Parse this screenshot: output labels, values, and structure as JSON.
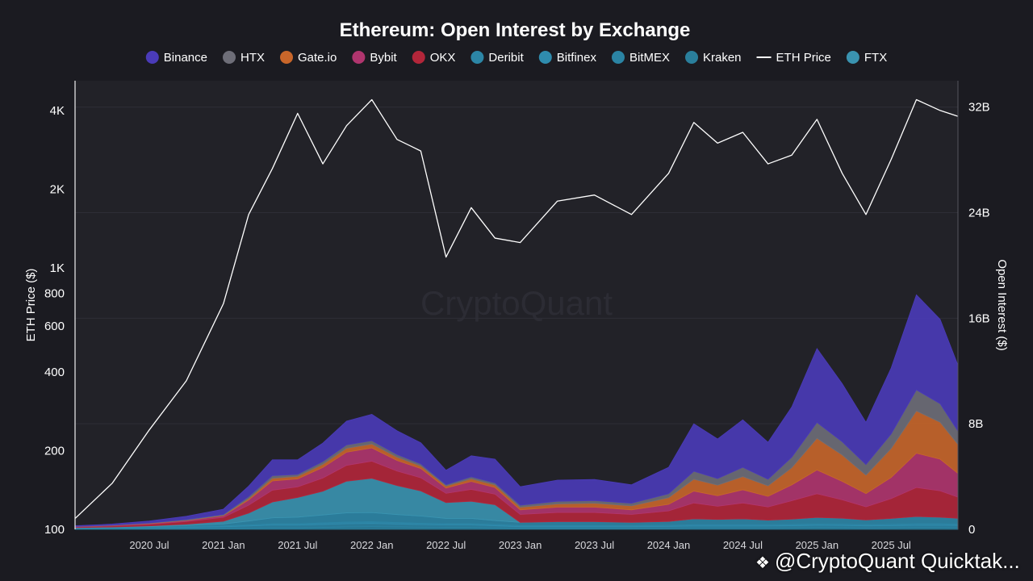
{
  "footer": {
    "icon": "binance-logo-icon",
    "text": "@CryptoQuant Quicktak..."
  },
  "chart_data": {
    "type": "area",
    "title": "Ethereum: Open Interest by Exchange",
    "watermark": "CryptoQuant",
    "ylabel_left": "ETH Price ($)",
    "ylabel_right": "Open Interest ($)",
    "y_left_scale": "log",
    "y_left_range": [
      100,
      5200
    ],
    "y_left_ticks": [
      {
        "value": 100,
        "label": "100"
      },
      {
        "value": 200,
        "label": "200"
      },
      {
        "value": 400,
        "label": "400"
      },
      {
        "value": 600,
        "label": "600"
      },
      {
        "value": 800,
        "label": "800"
      },
      {
        "value": 1000,
        "label": "1K"
      },
      {
        "value": 2000,
        "label": "2K"
      },
      {
        "value": 4000,
        "label": "4K"
      }
    ],
    "y_right_range": [
      0,
      34
    ],
    "y_right_ticks": [
      {
        "value": 0,
        "label": "0"
      },
      {
        "value": 8,
        "label": "8B"
      },
      {
        "value": 16,
        "label": "16B"
      },
      {
        "value": 24,
        "label": "24B"
      },
      {
        "value": 32,
        "label": "32B"
      }
    ],
    "x_range": [
      2020.0,
      2025.95
    ],
    "x_ticks": [
      {
        "value": 2020.5,
        "label": "2020 Jul"
      },
      {
        "value": 2021.0,
        "label": "2021 Jan"
      },
      {
        "value": 2021.5,
        "label": "2021 Jul"
      },
      {
        "value": 2022.0,
        "label": "2022 Jan"
      },
      {
        "value": 2022.5,
        "label": "2022 Jul"
      },
      {
        "value": 2023.0,
        "label": "2023 Jan"
      },
      {
        "value": 2023.5,
        "label": "2023 Jul"
      },
      {
        "value": 2024.0,
        "label": "2024 Jan"
      },
      {
        "value": 2024.5,
        "label": "2024 Jul"
      },
      {
        "value": 2025.0,
        "label": "2025 Jan"
      },
      {
        "value": 2025.5,
        "label": "2025 Jul"
      }
    ],
    "grid": true,
    "legend_position": "top-center",
    "legend": [
      {
        "name": "Binance",
        "color": "#4a3bb8",
        "kind": "dot"
      },
      {
        "name": "HTX",
        "color": "#6e6e78",
        "kind": "dot"
      },
      {
        "name": "Gate.io",
        "color": "#c8662a",
        "kind": "dot"
      },
      {
        "name": "Bybit",
        "color": "#b0356e",
        "kind": "dot"
      },
      {
        "name": "OKX",
        "color": "#b3263a",
        "kind": "dot"
      },
      {
        "name": "Deribit",
        "color": "#2c86a6",
        "kind": "dot"
      },
      {
        "name": "Bitfinex",
        "color": "#2f8cae",
        "kind": "dot"
      },
      {
        "name": "BitMEX",
        "color": "#2b84a4",
        "kind": "dot"
      },
      {
        "name": "Kraken",
        "color": "#2a7f9c",
        "kind": "dot"
      },
      {
        "name": "ETH Price",
        "color": "#ffffff",
        "kind": "line"
      },
      {
        "name": "FTX",
        "color": "#3a93b0",
        "kind": "dot"
      }
    ],
    "x": [
      2020.0,
      2020.25,
      2020.5,
      2020.75,
      2021.0,
      2021.17,
      2021.33,
      2021.5,
      2021.67,
      2021.83,
      2022.0,
      2022.17,
      2022.33,
      2022.5,
      2022.67,
      2022.83,
      2023.0,
      2023.25,
      2023.5,
      2023.75,
      2024.0,
      2024.17,
      2024.33,
      2024.5,
      2024.67,
      2024.83,
      2025.0,
      2025.17,
      2025.33,
      2025.5,
      2025.67,
      2025.83,
      2025.95
    ],
    "eth_price": [
      110,
      150,
      240,
      370,
      730,
      1600,
      2400,
      3900,
      2500,
      3500,
      4400,
      3100,
      2800,
      1100,
      1700,
      1300,
      1250,
      1800,
      1900,
      1600,
      2300,
      3600,
      3000,
      3300,
      2500,
      2700,
      3700,
      2300,
      1600,
      2600,
      4400,
      4000,
      3800
    ],
    "series_stack_order": [
      "Kraken",
      "BitMEX",
      "Bitfinex",
      "Deribit",
      "FTX",
      "OKX",
      "Bybit",
      "Gate.io",
      "HTX",
      "Binance"
    ],
    "series": [
      {
        "name": "Kraken",
        "values": [
          0.02,
          0.03,
          0.04,
          0.05,
          0.08,
          0.1,
          0.12,
          0.12,
          0.15,
          0.18,
          0.2,
          0.18,
          0.16,
          0.15,
          0.15,
          0.12,
          0.08,
          0.08,
          0.08,
          0.08,
          0.1,
          0.12,
          0.12,
          0.12,
          0.12,
          0.13,
          0.15,
          0.14,
          0.12,
          0.13,
          0.15,
          0.15,
          0.14
        ]
      },
      {
        "name": "BitMEX",
        "values": [
          0.05,
          0.06,
          0.08,
          0.1,
          0.12,
          0.15,
          0.2,
          0.2,
          0.22,
          0.25,
          0.25,
          0.22,
          0.2,
          0.18,
          0.18,
          0.15,
          0.12,
          0.12,
          0.12,
          0.12,
          0.12,
          0.13,
          0.13,
          0.13,
          0.13,
          0.14,
          0.15,
          0.15,
          0.14,
          0.15,
          0.15,
          0.15,
          0.15
        ]
      },
      {
        "name": "Bitfinex",
        "values": [
          0.02,
          0.02,
          0.03,
          0.04,
          0.06,
          0.08,
          0.1,
          0.1,
          0.12,
          0.12,
          0.12,
          0.12,
          0.1,
          0.1,
          0.1,
          0.1,
          0.08,
          0.08,
          0.08,
          0.08,
          0.08,
          0.1,
          0.1,
          0.1,
          0.1,
          0.1,
          0.1,
          0.1,
          0.1,
          0.1,
          0.12,
          0.12,
          0.1
        ]
      },
      {
        "name": "Deribit",
        "values": [
          0.02,
          0.04,
          0.06,
          0.1,
          0.15,
          0.3,
          0.45,
          0.5,
          0.6,
          0.7,
          0.7,
          0.6,
          0.55,
          0.4,
          0.4,
          0.3,
          0.25,
          0.3,
          0.3,
          0.25,
          0.3,
          0.45,
          0.4,
          0.45,
          0.35,
          0.4,
          0.5,
          0.45,
          0.35,
          0.45,
          0.55,
          0.5,
          0.45
        ]
      },
      {
        "name": "FTX",
        "values": [
          0.02,
          0.03,
          0.05,
          0.1,
          0.2,
          0.6,
          1.2,
          1.5,
          1.8,
          2.4,
          2.6,
          2.2,
          1.9,
          1.2,
          1.3,
          1.2,
          0,
          0,
          0,
          0,
          0,
          0,
          0,
          0,
          0,
          0,
          0,
          0,
          0,
          0,
          0,
          0,
          0
        ]
      },
      {
        "name": "OKX",
        "values": [
          0.05,
          0.08,
          0.12,
          0.2,
          0.3,
          0.6,
          0.9,
          0.8,
          1.0,
          1.2,
          1.3,
          1.1,
          1.0,
          0.7,
          0.9,
          0.8,
          0.6,
          0.7,
          0.7,
          0.6,
          0.8,
          1.2,
          1.0,
          1.2,
          1.0,
          1.4,
          1.8,
          1.4,
          1.0,
          1.5,
          2.2,
          2.0,
          1.6
        ]
      },
      {
        "name": "Bybit",
        "values": [
          0.02,
          0.03,
          0.05,
          0.08,
          0.12,
          0.4,
          0.7,
          0.6,
          0.8,
          1.0,
          1.0,
          0.8,
          0.7,
          0.4,
          0.6,
          0.5,
          0.35,
          0.4,
          0.4,
          0.35,
          0.5,
          0.9,
          0.8,
          1.0,
          0.8,
          1.2,
          1.8,
          1.4,
          1.0,
          1.6,
          2.6,
          2.4,
          1.8
        ]
      },
      {
        "name": "Gate.io",
        "values": [
          0.01,
          0.01,
          0.02,
          0.02,
          0.03,
          0.1,
          0.2,
          0.2,
          0.25,
          0.3,
          0.3,
          0.25,
          0.2,
          0.15,
          0.2,
          0.2,
          0.2,
          0.25,
          0.3,
          0.3,
          0.5,
          0.9,
          0.8,
          1.0,
          0.8,
          1.3,
          2.4,
          2.0,
          1.4,
          2.2,
          3.2,
          2.8,
          2.2
        ]
      },
      {
        "name": "HTX",
        "values": [
          0.01,
          0.02,
          0.03,
          0.05,
          0.07,
          0.15,
          0.2,
          0.15,
          0.2,
          0.25,
          0.25,
          0.2,
          0.15,
          0.1,
          0.15,
          0.15,
          0.15,
          0.2,
          0.2,
          0.2,
          0.3,
          0.6,
          0.5,
          0.7,
          0.5,
          0.8,
          1.2,
          1.0,
          0.8,
          1.1,
          1.6,
          1.4,
          1.0
        ]
      },
      {
        "name": "Binance",
        "values": [
          0.05,
          0.08,
          0.15,
          0.25,
          0.4,
          0.8,
          1.2,
          1.1,
          1.4,
          1.8,
          2.0,
          1.8,
          1.6,
          1.1,
          1.6,
          1.8,
          1.4,
          1.6,
          1.6,
          1.4,
          2.0,
          3.6,
          3.0,
          3.6,
          2.8,
          3.8,
          5.6,
          4.4,
          3.2,
          5.0,
          7.2,
          6.4,
          5.0
        ]
      }
    ]
  }
}
